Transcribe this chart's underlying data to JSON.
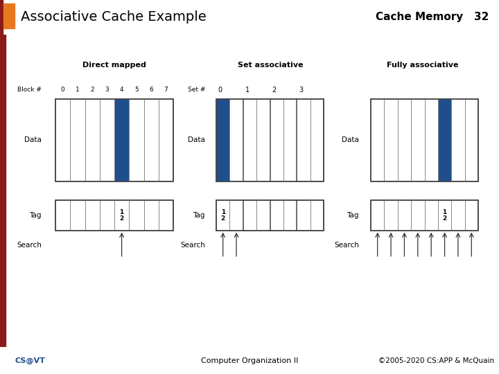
{
  "title": "Associative Cache Example",
  "title_right": "Cache Memory",
  "slide_num": "32",
  "footer_left": "CS@VT",
  "footer_center": "Computer Organization II",
  "footer_right": "©2005-2020 CS:APP & McQuain",
  "bg_color": "#e8e8e8",
  "white_bg": "#f5f5f5",
  "orange_sq": "#E87722",
  "dark_red": "#8B1A1A",
  "blue_col": "#1F4E8C",
  "sections": [
    {
      "title": "Direct mapped",
      "row_label": "Block #",
      "col_labels": [
        "0",
        "1",
        "2",
        "3",
        "4",
        "5",
        "6",
        "7"
      ],
      "num_cols": 8,
      "highlighted_col": 4,
      "data_label": "Data",
      "tag_label": "Tag",
      "search_label": "Search",
      "tag_text_col": 4,
      "tag_text": "1\n2",
      "search_arrow_cols": [
        4
      ],
      "set_labels": false
    },
    {
      "title": "Set associative",
      "row_label": "Set #",
      "col_labels": [
        "0",
        "1",
        "2",
        "3"
      ],
      "num_cols": 8,
      "highlighted_col": 0,
      "data_label": "Data",
      "tag_label": "Tag",
      "search_label": "Search",
      "tag_text_col": 0,
      "tag_text": "1\n2",
      "search_arrow_cols": [
        0,
        1
      ],
      "set_labels": true,
      "group_dividers": [
        2,
        4,
        6
      ]
    },
    {
      "title": "Fully associative",
      "row_label": "",
      "col_labels": [],
      "num_cols": 8,
      "highlighted_col": 5,
      "data_label": "Data",
      "tag_label": "Tag",
      "search_label": "Search",
      "tag_text_col": 5,
      "tag_text": "1\n2",
      "search_arrow_cols": [
        0,
        1,
        2,
        3,
        4,
        5,
        6,
        7
      ],
      "set_labels": false
    }
  ]
}
